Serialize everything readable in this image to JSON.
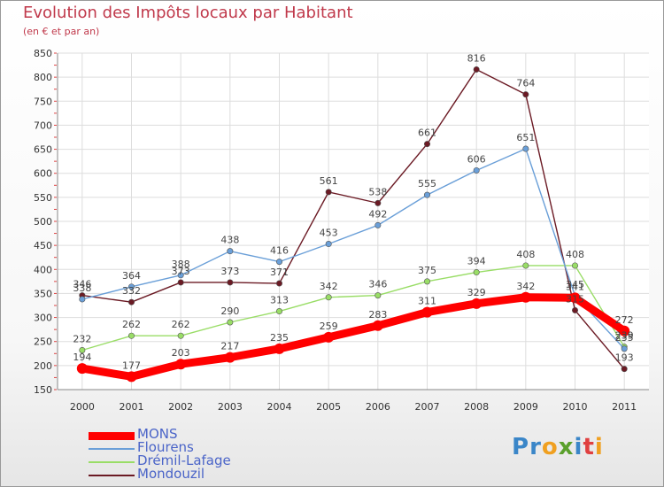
{
  "chart_data": {
    "type": "line",
    "title": "Evolution des Impôts locaux par Habitant",
    "subtitle": "(en € et par an)",
    "x": [
      "2000",
      "2001",
      "2002",
      "2003",
      "2004",
      "2005",
      "2006",
      "2007",
      "2008",
      "2009",
      "2010",
      "2011"
    ],
    "ylim": [
      150,
      850
    ],
    "yticks": [
      150,
      200,
      250,
      300,
      350,
      400,
      450,
      500,
      550,
      600,
      650,
      700,
      750,
      800,
      850
    ],
    "grid": true,
    "legend_position": "bottom-left",
    "series": [
      {
        "name": "MONS",
        "color": "#ff0000",
        "values": [
          194,
          177,
          203,
          217,
          235,
          259,
          283,
          311,
          329,
          342,
          341,
          272
        ]
      },
      {
        "name": "Flourens",
        "color": "#6a9fd8",
        "values": [
          338,
          364,
          388,
          438,
          416,
          453,
          492,
          555,
          606,
          651,
          345,
          235
        ]
      },
      {
        "name": "Drémil-Lafage",
        "color": "#99dd66",
        "values": [
          232,
          262,
          262,
          290,
          313,
          342,
          346,
          375,
          394,
          408,
          408,
          239
        ]
      },
      {
        "name": "Mondouzil",
        "color": "#6b1a24",
        "values": [
          346,
          332,
          373,
          373,
          371,
          561,
          538,
          661,
          816,
          764,
          315,
          193
        ]
      }
    ]
  },
  "logo": {
    "letters": [
      {
        "ch": "P",
        "color": "#3a86c8"
      },
      {
        "ch": "r",
        "color": "#3a86c8"
      },
      {
        "ch": "o",
        "color": "#f0a020"
      },
      {
        "ch": "x",
        "color": "#5aa02c"
      },
      {
        "ch": "i",
        "color": "#3a86c8"
      },
      {
        "ch": "t",
        "color": "#e04040"
      },
      {
        "ch": "i",
        "color": "#f0a020"
      }
    ]
  }
}
